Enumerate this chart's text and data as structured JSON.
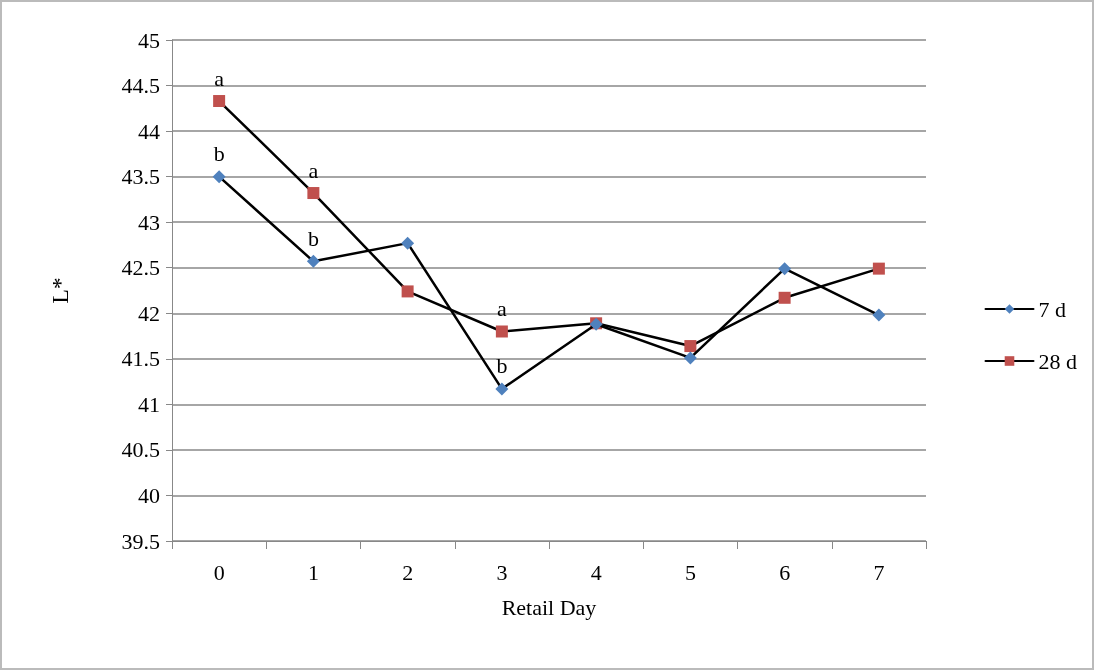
{
  "chart_data": {
    "type": "line",
    "xlabel": "Retail Day",
    "ylabel": "L*",
    "categories": [
      "0",
      "1",
      "2",
      "3",
      "4",
      "5",
      "6",
      "7"
    ],
    "series": [
      {
        "name": "7 d",
        "color": "#4f81bd",
        "marker": "diamond",
        "values": [
          43.5,
          42.57,
          42.77,
          41.17,
          41.88,
          41.51,
          42.49,
          41.98
        ]
      },
      {
        "name": "28 d",
        "color": "#c0504d",
        "marker": "square",
        "values": [
          44.33,
          43.32,
          42.24,
          41.8,
          41.89,
          41.64,
          42.17,
          42.49
        ]
      }
    ],
    "ylim": [
      39.5,
      45
    ],
    "yticks": [
      39.5,
      40,
      40.5,
      41,
      41.5,
      42,
      42.5,
      43,
      43.5,
      44,
      44.5,
      45
    ],
    "grid": "y",
    "legend": "right",
    "line_style": "solid",
    "annotations": [
      {
        "text": "a",
        "x": "0",
        "y": 44.33
      },
      {
        "text": "b",
        "x": "0",
        "y": 43.5
      },
      {
        "text": "a",
        "x": "1",
        "y": 43.32
      },
      {
        "text": "b",
        "x": "1",
        "y": 42.57
      },
      {
        "text": "a",
        "x": "3",
        "y": 41.8
      },
      {
        "text": "b",
        "x": "3",
        "y": 41.17
      }
    ]
  }
}
